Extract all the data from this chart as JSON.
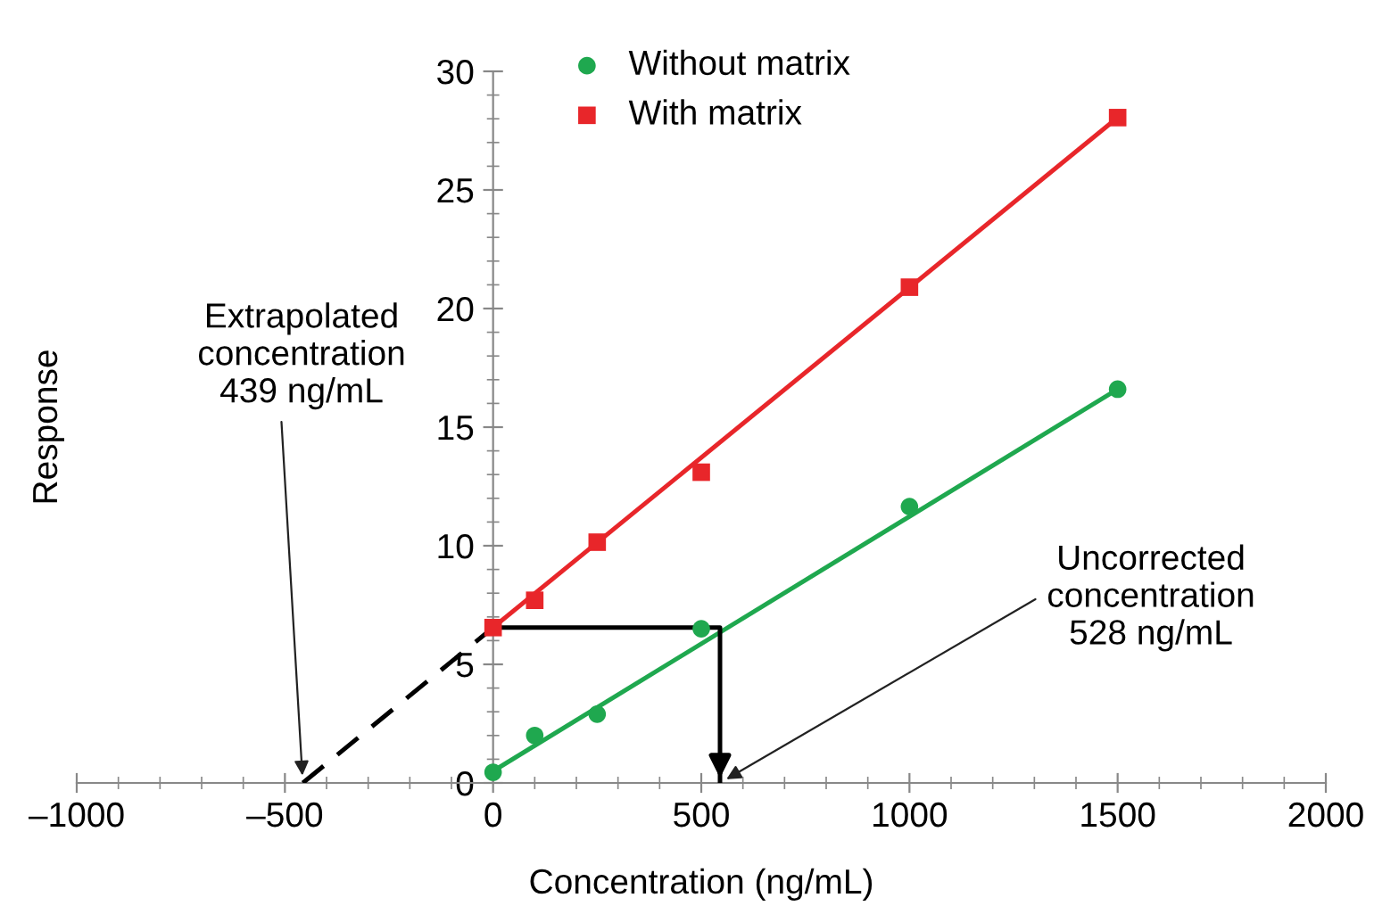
{
  "chart_data": {
    "type": "scatter",
    "xlabel": "Concentration (ng/mL)",
    "ylabel": "Response",
    "xlim": [
      -1000,
      2000
    ],
    "ylim": [
      0,
      30
    ],
    "xticks": [
      {
        "value": -1000,
        "label": "–1000"
      },
      {
        "value": -500,
        "label": "–500"
      },
      0,
      500,
      1000,
      1500,
      2000
    ],
    "yticks": [
      0,
      5,
      10,
      15,
      20,
      25,
      30
    ],
    "series": [
      {
        "name": "Without matrix",
        "color": "#1fa84f",
        "marker": "circle",
        "x": [
          0,
          100,
          250,
          500,
          1000,
          1500
        ],
        "values": [
          0.45,
          2.0,
          2.9,
          6.5,
          11.65,
          16.6
        ]
      },
      {
        "name": "With matrix",
        "color": "#e8262a",
        "marker": "square",
        "x": [
          0,
          100,
          250,
          500,
          1000,
          1500
        ],
        "values": [
          6.55,
          7.7,
          10.15,
          13.1,
          20.9,
          28.05
        ]
      },
      {
        "type": "line",
        "color": "#1fa84f",
        "x": [
          0,
          1500
        ],
        "values": [
          0.5,
          16.6
        ]
      },
      {
        "type": "line",
        "color": "#e8262a",
        "x": [
          0,
          1500
        ],
        "values": [
          6.55,
          28.05
        ]
      },
      {
        "type": "line",
        "color": "#000000",
        "line_style": "dashed",
        "x": [
          -457,
          0
        ],
        "values": [
          0,
          6.55
        ]
      },
      {
        "type": "line",
        "color": "#000000",
        "x": [
          0,
          545,
          545
        ],
        "values": [
          6.55,
          6.55,
          0
        ]
      }
    ],
    "annotations": [
      {
        "text": "Extrapolated\nconcentration\n439 ng/mL",
        "x": -457,
        "y": 0
      },
      {
        "text": "Uncorrected\nconcentration\n528 ng/mL",
        "x": 545,
        "y": 0
      }
    ],
    "legend": "top",
    "grid": false
  }
}
